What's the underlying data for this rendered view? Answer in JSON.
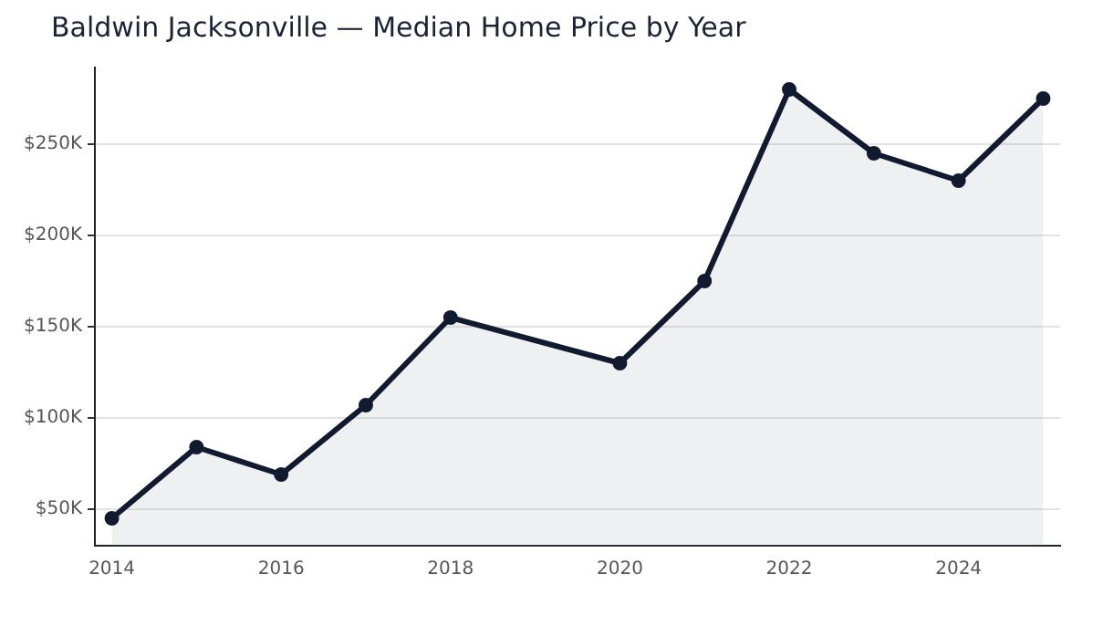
{
  "chart_data": {
    "type": "area",
    "title": "Baldwin Jacksonville — Median Home Price by Year",
    "x": [
      2014,
      2015,
      2016,
      2017,
      2018,
      2020,
      2021,
      2022,
      2023,
      2024,
      2025
    ],
    "series": [
      {
        "color": "#111a2e",
        "values": [
          45,
          84,
          69,
          107,
          155,
          130,
          175,
          280,
          245,
          230,
          275
        ]
      }
    ],
    "xlim": [
      2013.8,
      2025.2
    ],
    "xticks": [
      2014,
      2016,
      2018,
      2020,
      2022,
      2024
    ],
    "ylim": [
      30,
      292
    ],
    "yticks": [
      {
        "value": 50,
        "label": "$50K"
      },
      {
        "value": 100,
        "label": "$100K"
      },
      {
        "value": 150,
        "label": "$150K"
      },
      {
        "value": 200,
        "label": "$200K"
      },
      {
        "value": 250,
        "label": "$250K"
      }
    ],
    "grid": "y",
    "legend": false,
    "marker": "circle",
    "line_style": "solid"
  }
}
